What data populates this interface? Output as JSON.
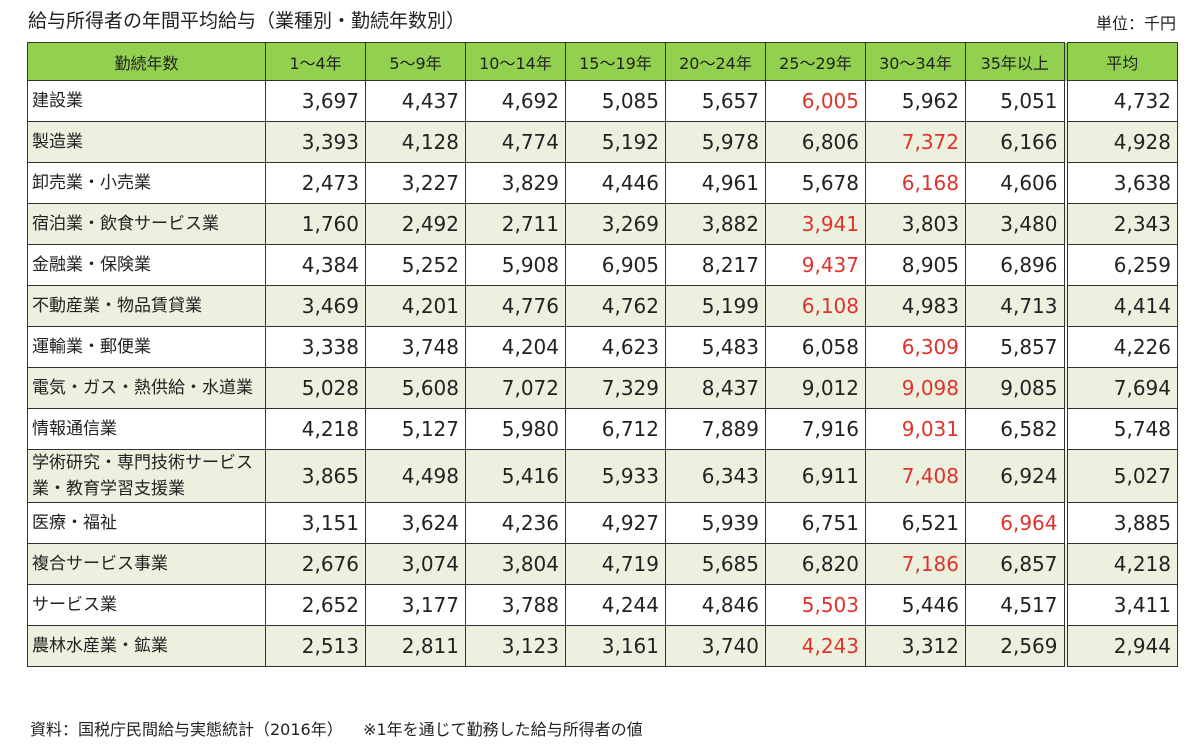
{
  "header": {
    "title": "給与所得者の年間平均給与（業種別・勤続年数別）",
    "unit": "単位：千円"
  },
  "table": {
    "columns": [
      "勤続年数",
      "1～4年",
      "5～9年",
      "10～14年",
      "15～19年",
      "20～24年",
      "25～29年",
      "30～34年",
      "35年以上",
      "平均"
    ],
    "highlight_color": "#e0322c",
    "rows": [
      [
        "建設業",
        "3,697",
        "4,437",
        "4,692",
        "5,085",
        "5,657",
        "6,005",
        "5,962",
        "5,051",
        "4,732"
      ],
      [
        "製造業",
        "3,393",
        "4,128",
        "4,774",
        "5,192",
        "5,978",
        "6,806",
        "7,372",
        "6,166",
        "4,928"
      ],
      [
        "卸売業・小売業",
        "2,473",
        "3,227",
        "3,829",
        "4,446",
        "4,961",
        "5,678",
        "6,168",
        "4,606",
        "3,638"
      ],
      [
        "宿泊業・飲食サービス業",
        "1,760",
        "2,492",
        "2,711",
        "3,269",
        "3,882",
        "3,941",
        "3,803",
        "3,480",
        "2,343"
      ],
      [
        "金融業・保険業",
        "4,384",
        "5,252",
        "5,908",
        "6,905",
        "8,217",
        "9,437",
        "8,905",
        "6,896",
        "6,259"
      ],
      [
        "不動産業・物品賃貸業",
        "3,469",
        "4,201",
        "4,776",
        "4,762",
        "5,199",
        "6,108",
        "4,983",
        "4,713",
        "4,414"
      ],
      [
        "運輸業・郵便業",
        "3,338",
        "3,748",
        "4,204",
        "4,623",
        "5,483",
        "6,058",
        "6,309",
        "5,857",
        "4,226"
      ],
      [
        "電気・ガス・熱供給・水道業",
        "5,028",
        "5,608",
        "7,072",
        "7,329",
        "8,437",
        "9,012",
        "9,098",
        "9,085",
        "7,694"
      ],
      [
        "情報通信業",
        "4,218",
        "5,127",
        "5,980",
        "6,712",
        "7,889",
        "7,916",
        "9,031",
        "6,582",
        "5,748"
      ],
      [
        "学術研究・専門技術サービス業・教育学習支援業",
        "3,865",
        "4,498",
        "5,416",
        "5,933",
        "6,343",
        "6,911",
        "7,408",
        "6,924",
        "5,027"
      ],
      [
        "医療・福祉",
        "3,151",
        "3,624",
        "4,236",
        "4,927",
        "5,939",
        "6,751",
        "6,521",
        "6,964",
        "3,885"
      ],
      [
        "複合サービス事業",
        "2,676",
        "3,074",
        "3,804",
        "4,719",
        "5,685",
        "6,820",
        "7,186",
        "6,857",
        "4,218"
      ],
      [
        "サービス業",
        "2,652",
        "3,177",
        "3,788",
        "4,244",
        "4,846",
        "5,503",
        "5,446",
        "4,517",
        "3,411"
      ],
      [
        "農林水産業・鉱業",
        "2,513",
        "2,811",
        "3,123",
        "3,161",
        "3,740",
        "4,243",
        "3,312",
        "2,569",
        "2,944"
      ]
    ]
  },
  "footer": {
    "source": "資料：国税庁民間給与実態統計（2016年）",
    "note": "※1年を通じて勤務した給与所得者の値"
  }
}
